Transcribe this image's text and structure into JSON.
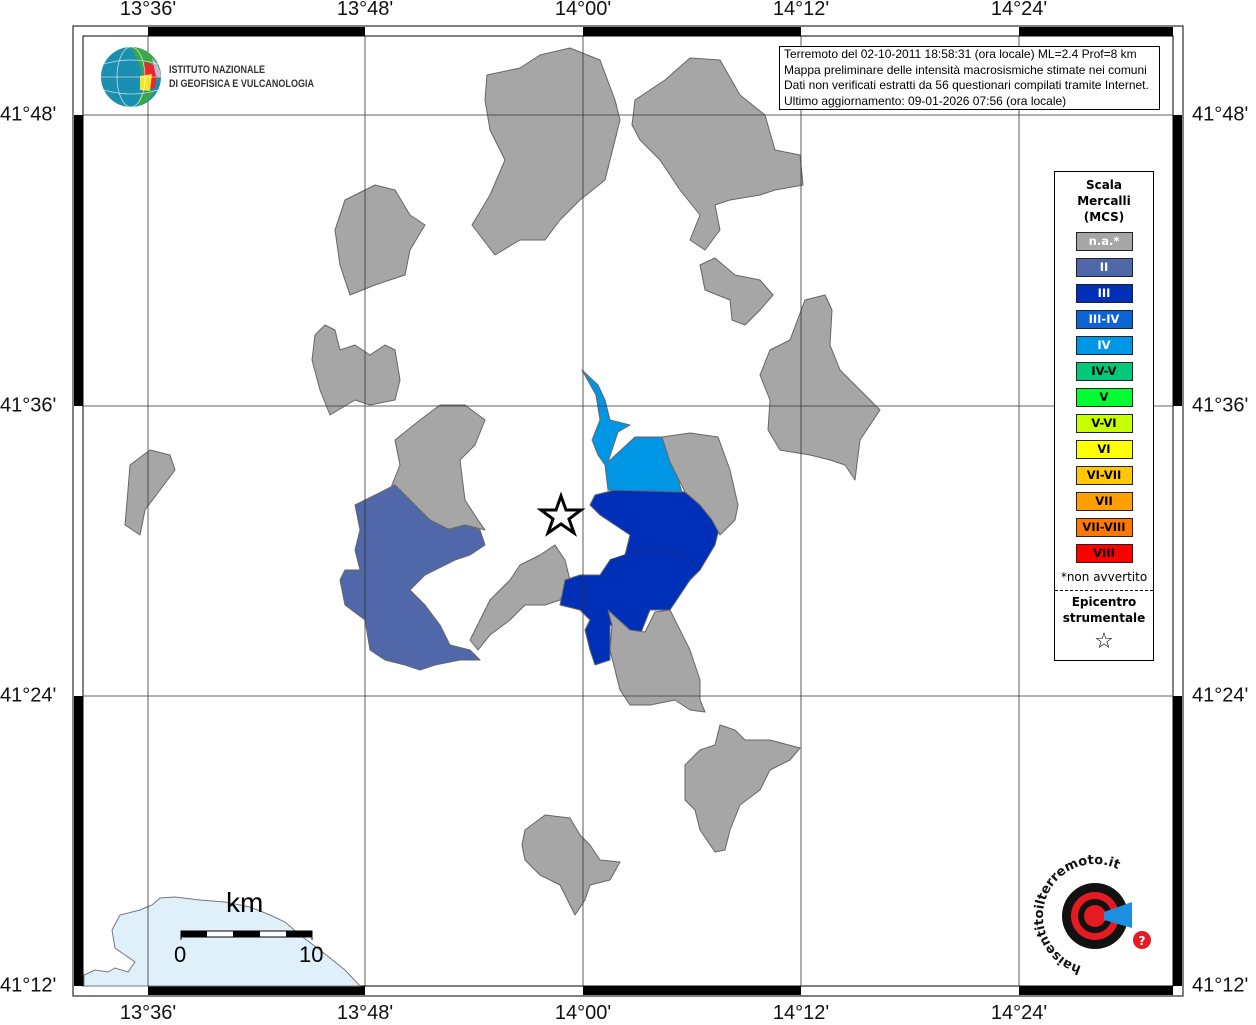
{
  "map": {
    "lon_labels": [
      "13°36'",
      "13°48'",
      "14°00'",
      "14°12'",
      "14°24'"
    ],
    "lat_labels": [
      "41°48'",
      "41°36'",
      "41°24'",
      "41°12'"
    ],
    "communes": [
      {
        "intensity": "n.a.*"
      },
      {
        "intensity": "n.a.*"
      },
      {
        "intensity": "n.a.*"
      },
      {
        "intensity": "n.a.*"
      },
      {
        "intensity": "n.a.*"
      },
      {
        "intensity": "n.a.*"
      },
      {
        "intensity": "n.a.*"
      },
      {
        "intensity": "n.a.*"
      },
      {
        "intensity": "II"
      },
      {
        "intensity": "n.a.*"
      },
      {
        "intensity": "III"
      },
      {
        "intensity": "IV"
      },
      {
        "intensity": "n.a.*"
      },
      {
        "intensity": "n.a.*"
      },
      {
        "intensity": "n.a.*"
      },
      {
        "intensity": "n.a.*"
      }
    ],
    "epicenter_icon": "star-icon"
  },
  "info": {
    "lines": [
      "Terremoto del 02-10-2011 18:58:31 (ora locale) ML=2.4 Prof=8 km",
      "Mappa preliminare delle intensità macrosismiche stimate nei comuni",
      "Dati non verificati estratti da 56 questionari compilati tramite Internet.",
      "Ultimo aggiornamento: 09-01-2026 07:56 (ora locale)"
    ]
  },
  "legend": {
    "title_lines": [
      "Scala",
      "Mercalli",
      "(MCS)"
    ],
    "items": [
      {
        "label": "n.a.*",
        "color": "#a6a6a6",
        "text_color": "#ffffff"
      },
      {
        "label": "II",
        "color": "#5067aa",
        "text_color": "#ffffff"
      },
      {
        "label": "III",
        "color": "#0030b8",
        "text_color": "#ffffff"
      },
      {
        "label": "III-IV",
        "color": "#0a64d2",
        "text_color": "#ffffff"
      },
      {
        "label": "IV",
        "color": "#0096e6",
        "text_color": "#ffffff"
      },
      {
        "label": "IV-V",
        "color": "#00c878",
        "text_color": "#000000"
      },
      {
        "label": "V",
        "color": "#00ff32",
        "text_color": "#000000"
      },
      {
        "label": "V-VI",
        "color": "#c8ff00",
        "text_color": "#000000"
      },
      {
        "label": "VI",
        "color": "#ffff00",
        "text_color": "#000000"
      },
      {
        "label": "VI-VII",
        "color": "#ffc800",
        "text_color": "#000000"
      },
      {
        "label": "VII",
        "color": "#ffa000",
        "text_color": "#000000"
      },
      {
        "label": "VII-VIII",
        "color": "#ff7800",
        "text_color": "#000000"
      },
      {
        "label": "VIII",
        "color": "#ff0000",
        "text_color": "#000000"
      }
    ],
    "note": "*non avvertito",
    "epicenter_lines": [
      "Epicentro",
      "strumentale"
    ],
    "epicenter_symbol": "☆"
  },
  "logos": {
    "ingv": {
      "line1": "ISTITUTO NAZIONALE",
      "line2": "DI GEOFISICA E VULCANOLOGIA"
    },
    "hst": {
      "text": "www.haisentitoilterremoto.it"
    }
  },
  "scale": {
    "unit": "km",
    "start": "0",
    "end": "10"
  },
  "colors": {
    "water": "#dff0fb",
    "na": "#a6a6a6",
    "II": "#5067aa",
    "III": "#0030b8",
    "IV": "#0096e6"
  }
}
